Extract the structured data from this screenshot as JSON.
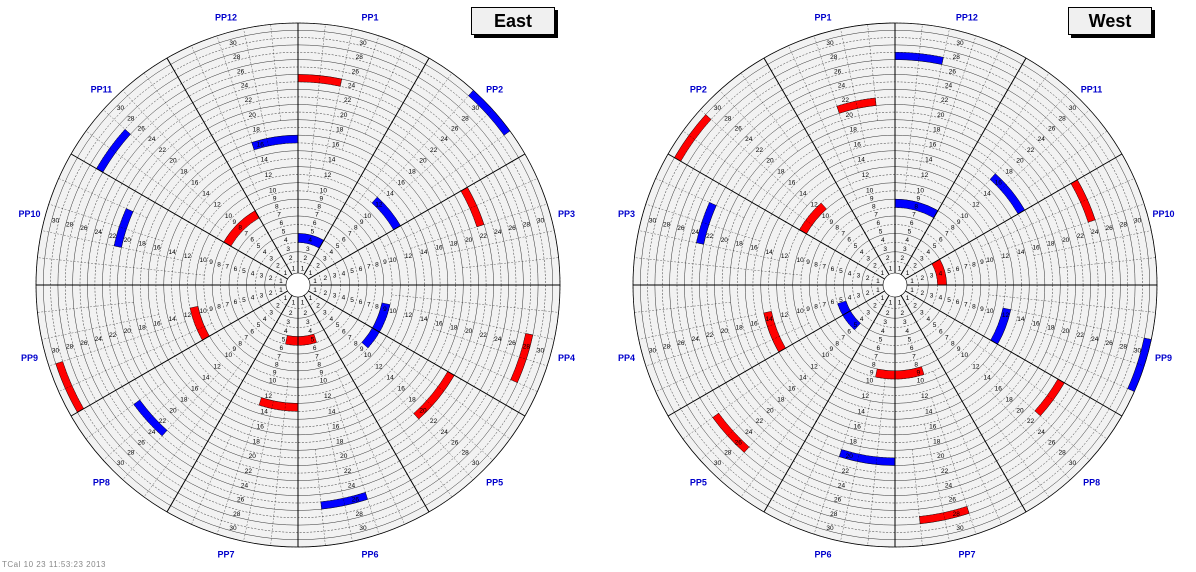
{
  "panels": [
    {
      "id": "east",
      "title": "East",
      "pp_labels": [
        "PP1",
        "PP2",
        "PP3",
        "PP4",
        "PP5",
        "PP6",
        "PP7",
        "PP8",
        "PP9",
        "PP10",
        "PP11",
        "PP12"
      ],
      "label_direction": "clockwise",
      "rings": 31,
      "highlighted_cells": [
        {
          "ring": 4,
          "color": "blue"
        },
        {
          "ring": 5,
          "color": "red"
        },
        {
          "ring": 8,
          "color": "red"
        },
        {
          "ring": 9,
          "color": "blue"
        },
        {
          "ring": 11,
          "color": "red"
        },
        {
          "ring": 12,
          "color": "blue"
        },
        {
          "ring": 13,
          "color": "red"
        },
        {
          "ring": 16,
          "color": "blue"
        },
        {
          "ring": 20,
          "color": "red"
        },
        {
          "ring": 21,
          "color": "blue"
        },
        {
          "ring": 22,
          "color": "red"
        },
        {
          "ring": 23,
          "color": "blue"
        },
        {
          "ring": 24,
          "color": "red"
        },
        {
          "ring": 26,
          "color": "blue"
        },
        {
          "ring": 27,
          "color": "blue"
        },
        {
          "ring": 28,
          "color": "red"
        },
        {
          "ring": 30,
          "color": "red"
        },
        {
          "ring": 31,
          "color": "blue"
        }
      ]
    },
    {
      "id": "west",
      "title": "West",
      "pp_labels": [
        "PP12",
        "PP11",
        "PP10",
        "PP9",
        "PP8",
        "PP7",
        "PP6",
        "PP5",
        "PP4",
        "PP3",
        "PP2",
        "PP1"
      ],
      "label_direction": "clockwise",
      "rings": 31,
      "highlighted_cells": [
        {
          "ring": 4,
          "color": "red"
        },
        {
          "ring": 5,
          "color": "blue"
        },
        {
          "ring": 8,
          "color": "blue"
        },
        {
          "ring": 9,
          "color": "red"
        },
        {
          "ring": 11,
          "color": "red"
        },
        {
          "ring": 12,
          "color": "blue"
        },
        {
          "ring": 14,
          "color": "red"
        },
        {
          "ring": 16,
          "color": "blue"
        },
        {
          "ring": 20,
          "color": "blue"
        },
        {
          "ring": 21,
          "color": "red"
        },
        {
          "ring": 22,
          "color": "red"
        },
        {
          "ring": 23,
          "color": "blue"
        },
        {
          "ring": 24,
          "color": "red"
        },
        {
          "ring": 26,
          "color": "red"
        },
        {
          "ring": 27,
          "color": "blue"
        },
        {
          "ring": 28,
          "color": "red"
        },
        {
          "ring": 30,
          "color": "red"
        },
        {
          "ring": 31,
          "color": "blue"
        }
      ]
    }
  ],
  "colors": {
    "cell_fill": "#f2f2f2",
    "grid_line": "#000000",
    "highlight_red": "#ff0000",
    "highlight_blue": "#0000ff",
    "pp_label": "#0000cc"
  },
  "footer": "TCal 10 23 11:53:23 2013"
}
